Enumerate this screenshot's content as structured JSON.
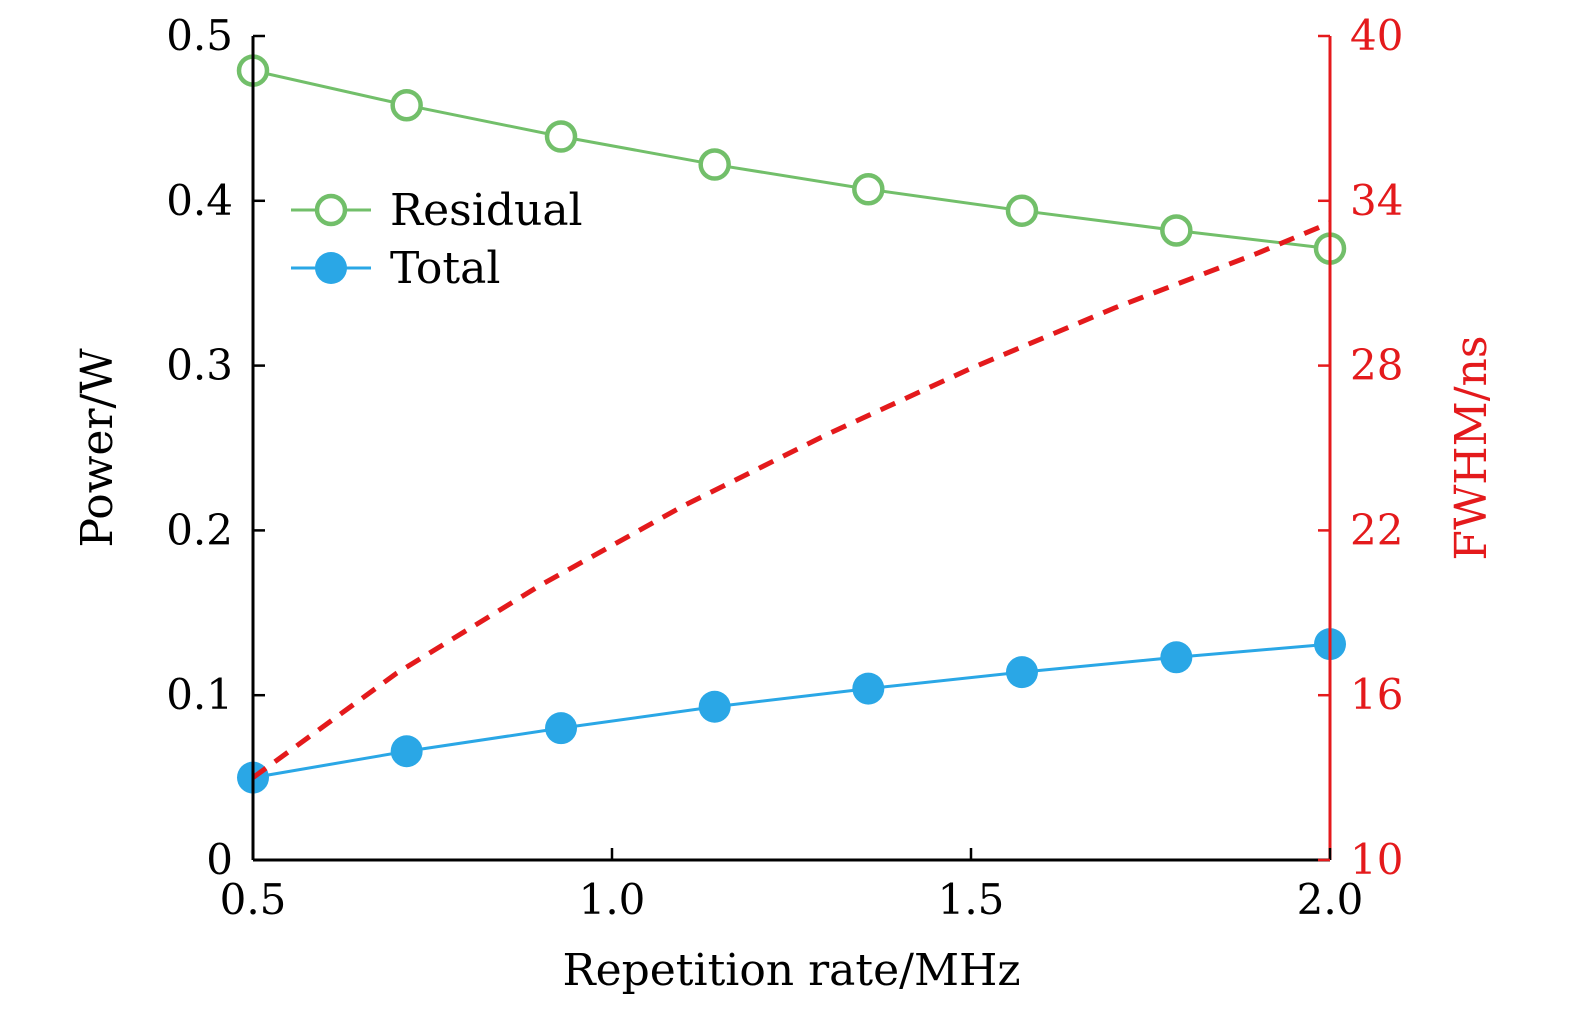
{
  "colors": {
    "axis": "#000000",
    "right_axis": "#e41a1c",
    "residual": "#72bf6a",
    "total": "#2aa7e6",
    "fwhm": "#e41a1c"
  },
  "chart_data": {
    "type": "line",
    "xlabel": "Repetition rate/MHz",
    "ylabel": "Power/W",
    "y2label": "FWHM/ns",
    "xlim": [
      0.5,
      2.0
    ],
    "ylim": [
      0,
      0.5
    ],
    "y2lim": [
      10,
      40
    ],
    "xticks": [
      0.5,
      1.0,
      1.5,
      2.0
    ],
    "xtick_labels": [
      "0.5",
      "1.0",
      "1.5",
      "2.0"
    ],
    "yticks": [
      0,
      0.1,
      0.2,
      0.3,
      0.4,
      0.5
    ],
    "ytick_labels": [
      "0",
      "0.1",
      "0.2",
      "0.3",
      "0.4",
      "0.5"
    ],
    "y2ticks": [
      10,
      16,
      22,
      28,
      34,
      40
    ],
    "y2tick_labels": [
      "10",
      "16",
      "22",
      "28",
      "34",
      "40"
    ],
    "legend_position": "upper-left",
    "x": [
      0.5,
      0.714,
      0.929,
      1.143,
      1.357,
      1.571,
      1.786,
      2.0
    ],
    "series": [
      {
        "name": "Residual",
        "axis": "left",
        "marker": "open-circle",
        "color": "#72bf6a",
        "values": [
          0.479,
          0.458,
          0.439,
          0.422,
          0.407,
          0.394,
          0.382,
          0.371
        ]
      },
      {
        "name": "Total",
        "axis": "left",
        "marker": "filled-circle",
        "color": "#2aa7e6",
        "values": [
          0.05,
          0.066,
          0.08,
          0.093,
          0.104,
          0.114,
          0.123,
          0.131
        ]
      },
      {
        "name": "FWHM",
        "axis": "right",
        "style": "dashed",
        "color": "#e41a1c",
        "x": [
          0.5,
          0.7,
          0.9,
          1.1,
          1.3,
          1.5,
          1.7,
          1.9,
          2.0
        ],
        "values": [
          13.0,
          16.8,
          20.0,
          22.9,
          25.5,
          27.9,
          30.1,
          32.1,
          33.2
        ]
      }
    ]
  }
}
